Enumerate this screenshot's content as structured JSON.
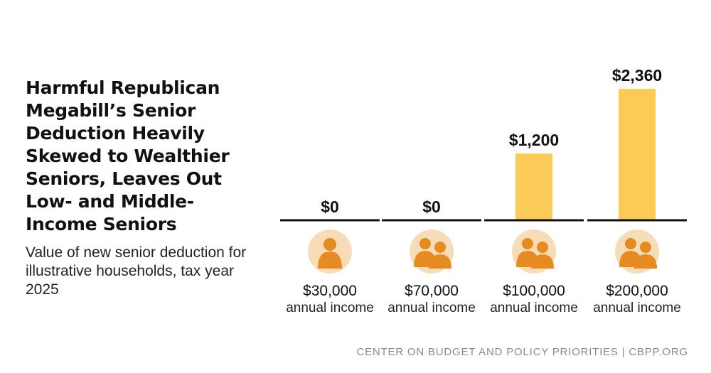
{
  "title": "Harmful Republican Megabill’s Senior Deduction Heavily Skewed to Wealthier Seniors, Leaves Out Low- and Middle-Income Seniors",
  "subtitle": "Value of new senior deduction for illustrative households, tax year 2025",
  "source": "CENTER ON BUDGET AND POLICY PRIORITIES | CBPP.ORG",
  "colors": {
    "bar": "#FBCB57",
    "icon_circle": "#F6DDB8",
    "icon_figure": "#E58B22",
    "baseline": "#111111"
  },
  "chart_data": {
    "type": "bar",
    "title": "Value of new senior deduction for illustrative households, tax year 2025",
    "categories": [
      "$30,000",
      "$70,000",
      "$100,000",
      "$200,000"
    ],
    "category_sublabel": "annual income",
    "values": [
      0,
      0,
      1200,
      2360
    ],
    "value_labels": [
      "$0",
      "$0",
      "$1,200",
      "$2,360"
    ],
    "household_icons": [
      "single-person-icon",
      "couple-icon",
      "couple-icon",
      "couple-icon"
    ],
    "ylim": [
      0,
      2360
    ],
    "xlabel": "",
    "ylabel": "",
    "grid": false
  }
}
